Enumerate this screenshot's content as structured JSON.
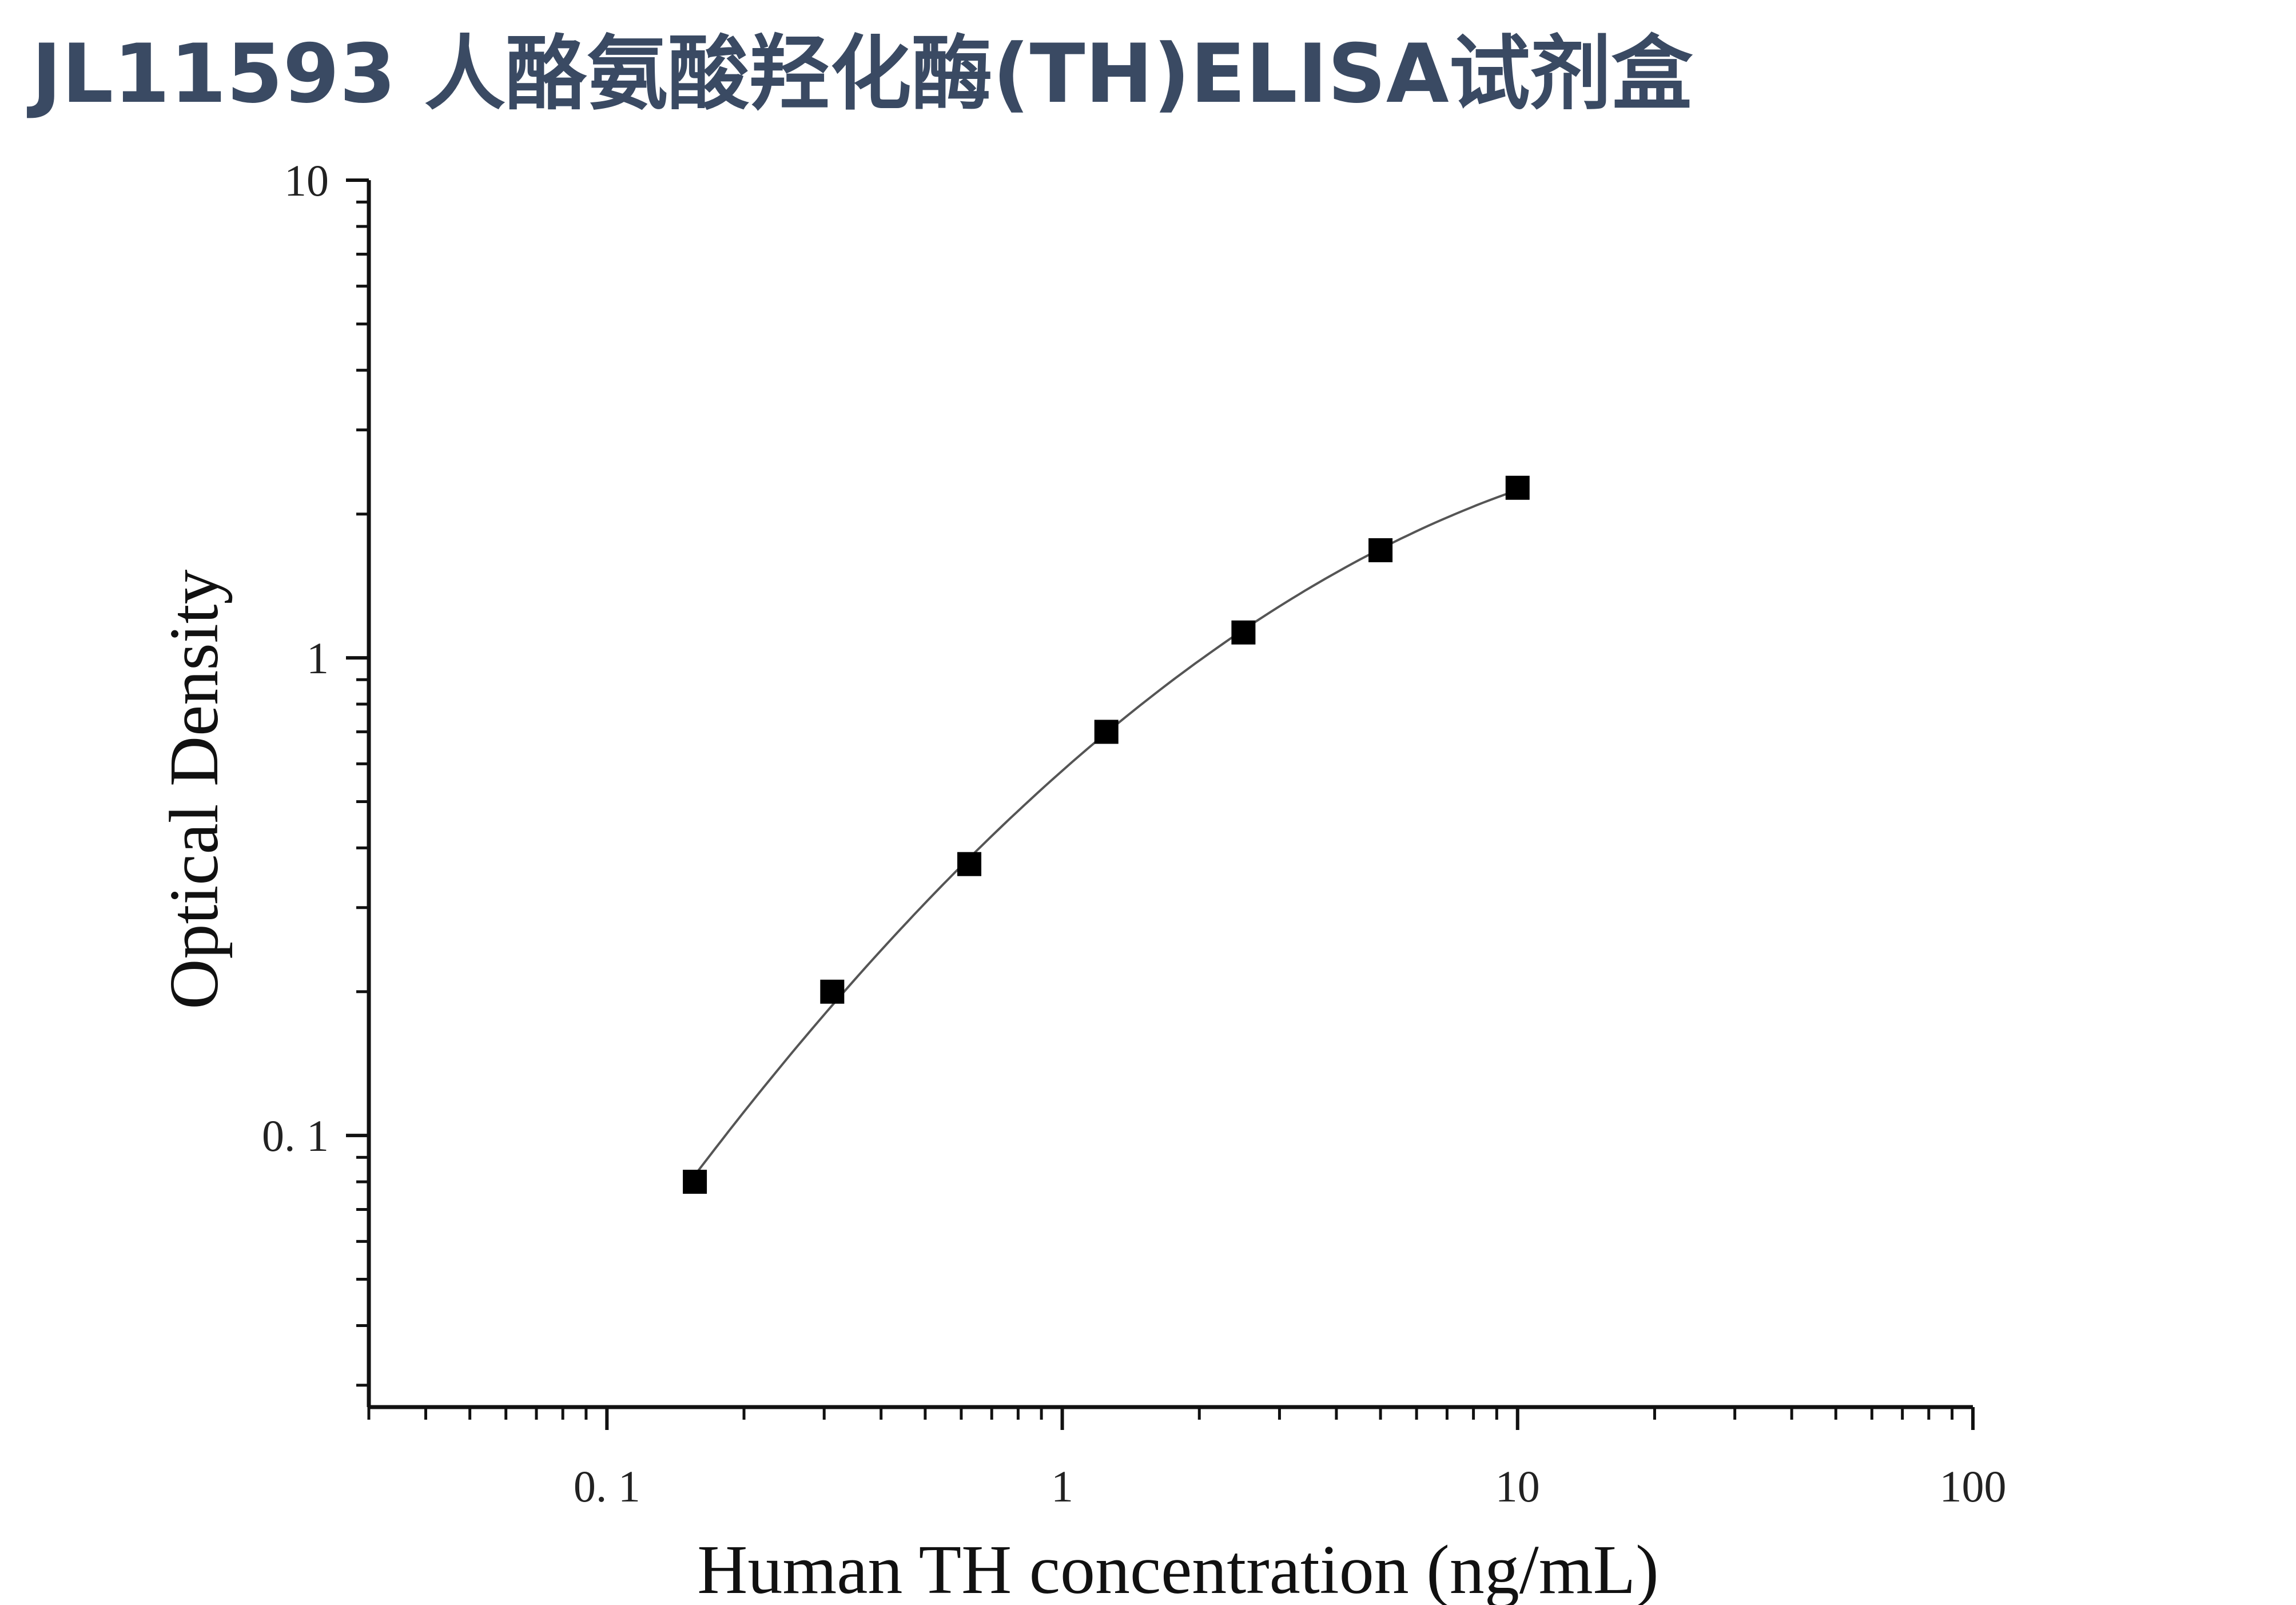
{
  "title": "JL11593 人酪氨酸羟化酶(TH)ELISA试剂盒",
  "chart_data": {
    "type": "scatter",
    "xlabel": "Human TH concentration (ng/mL)",
    "ylabel": "Optical Density",
    "x_scale": "log",
    "y_scale": "log",
    "xlim": [
      0.03,
      100
    ],
    "ylim": [
      0.027,
      10
    ],
    "x_tick_labels": [
      "0. 1",
      "1",
      "10",
      "100"
    ],
    "x_tick_values": [
      0.1,
      1,
      10,
      100
    ],
    "y_tick_labels": [
      "0. 1",
      "1",
      "10"
    ],
    "y_tick_values": [
      0.1,
      1,
      10
    ],
    "grid": false,
    "series": [
      {
        "x": [
          0.156,
          0.3125,
          0.625,
          1.25,
          2.5,
          5,
          10
        ],
        "y": [
          0.08,
          0.2,
          0.37,
          0.7,
          1.13,
          1.68,
          2.27
        ],
        "marker": "square",
        "fit_line": true
      }
    ],
    "marker_color": "#000000",
    "line_color": "#555555",
    "axis_color": "#111111"
  }
}
